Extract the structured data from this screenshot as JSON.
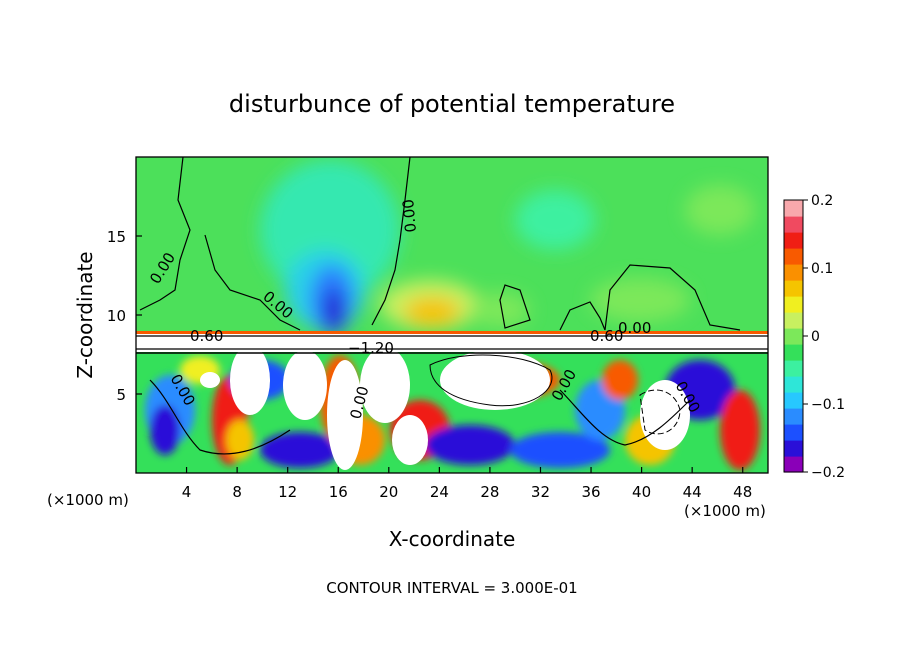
{
  "chart_data": {
    "type": "heatmap",
    "title": "disturbunce of potential temperature",
    "xlabel": "X-coordinate",
    "ylabel": "Z-coordinate",
    "x_unit": "(×1000 m)",
    "y_unit": "(×1000 m)",
    "xlim": [
      0,
      50
    ],
    "ylim": [
      0,
      20
    ],
    "x_ticks": [
      4,
      8,
      12,
      16,
      20,
      24,
      28,
      32,
      36,
      40,
      44,
      48
    ],
    "y_ticks": [
      5,
      10,
      15
    ],
    "colorbar": {
      "min": -0.2,
      "max": 0.2,
      "tick_values": [
        0.2,
        0.1,
        0,
        -0.1,
        -0.2
      ],
      "tick_labels": [
        "0.2",
        "0.1",
        "0",
        "−0.1",
        "−0.2"
      ],
      "colors": [
        "#8a00b8",
        "#2a0fd8",
        "#1c50ff",
        "#2a8cff",
        "#27c8ff",
        "#2ee6d8",
        "#3cf0a0",
        "#34e05a",
        "#7ce85a",
        "#c8f060",
        "#f0ef20",
        "#f5c400",
        "#fa9000",
        "#f85a00",
        "#f01e14",
        "#f04a60",
        "#f8a8ac"
      ]
    },
    "contour_labels": [
      "0.00",
      "0.00",
      "0.00",
      "0.00",
      "0.60",
      "−1.20",
      "0.60",
      "0.00",
      "0.00",
      "0.00",
      "0.00"
    ],
    "footer": "CONTOUR INTERVAL = 3.000E-01"
  }
}
